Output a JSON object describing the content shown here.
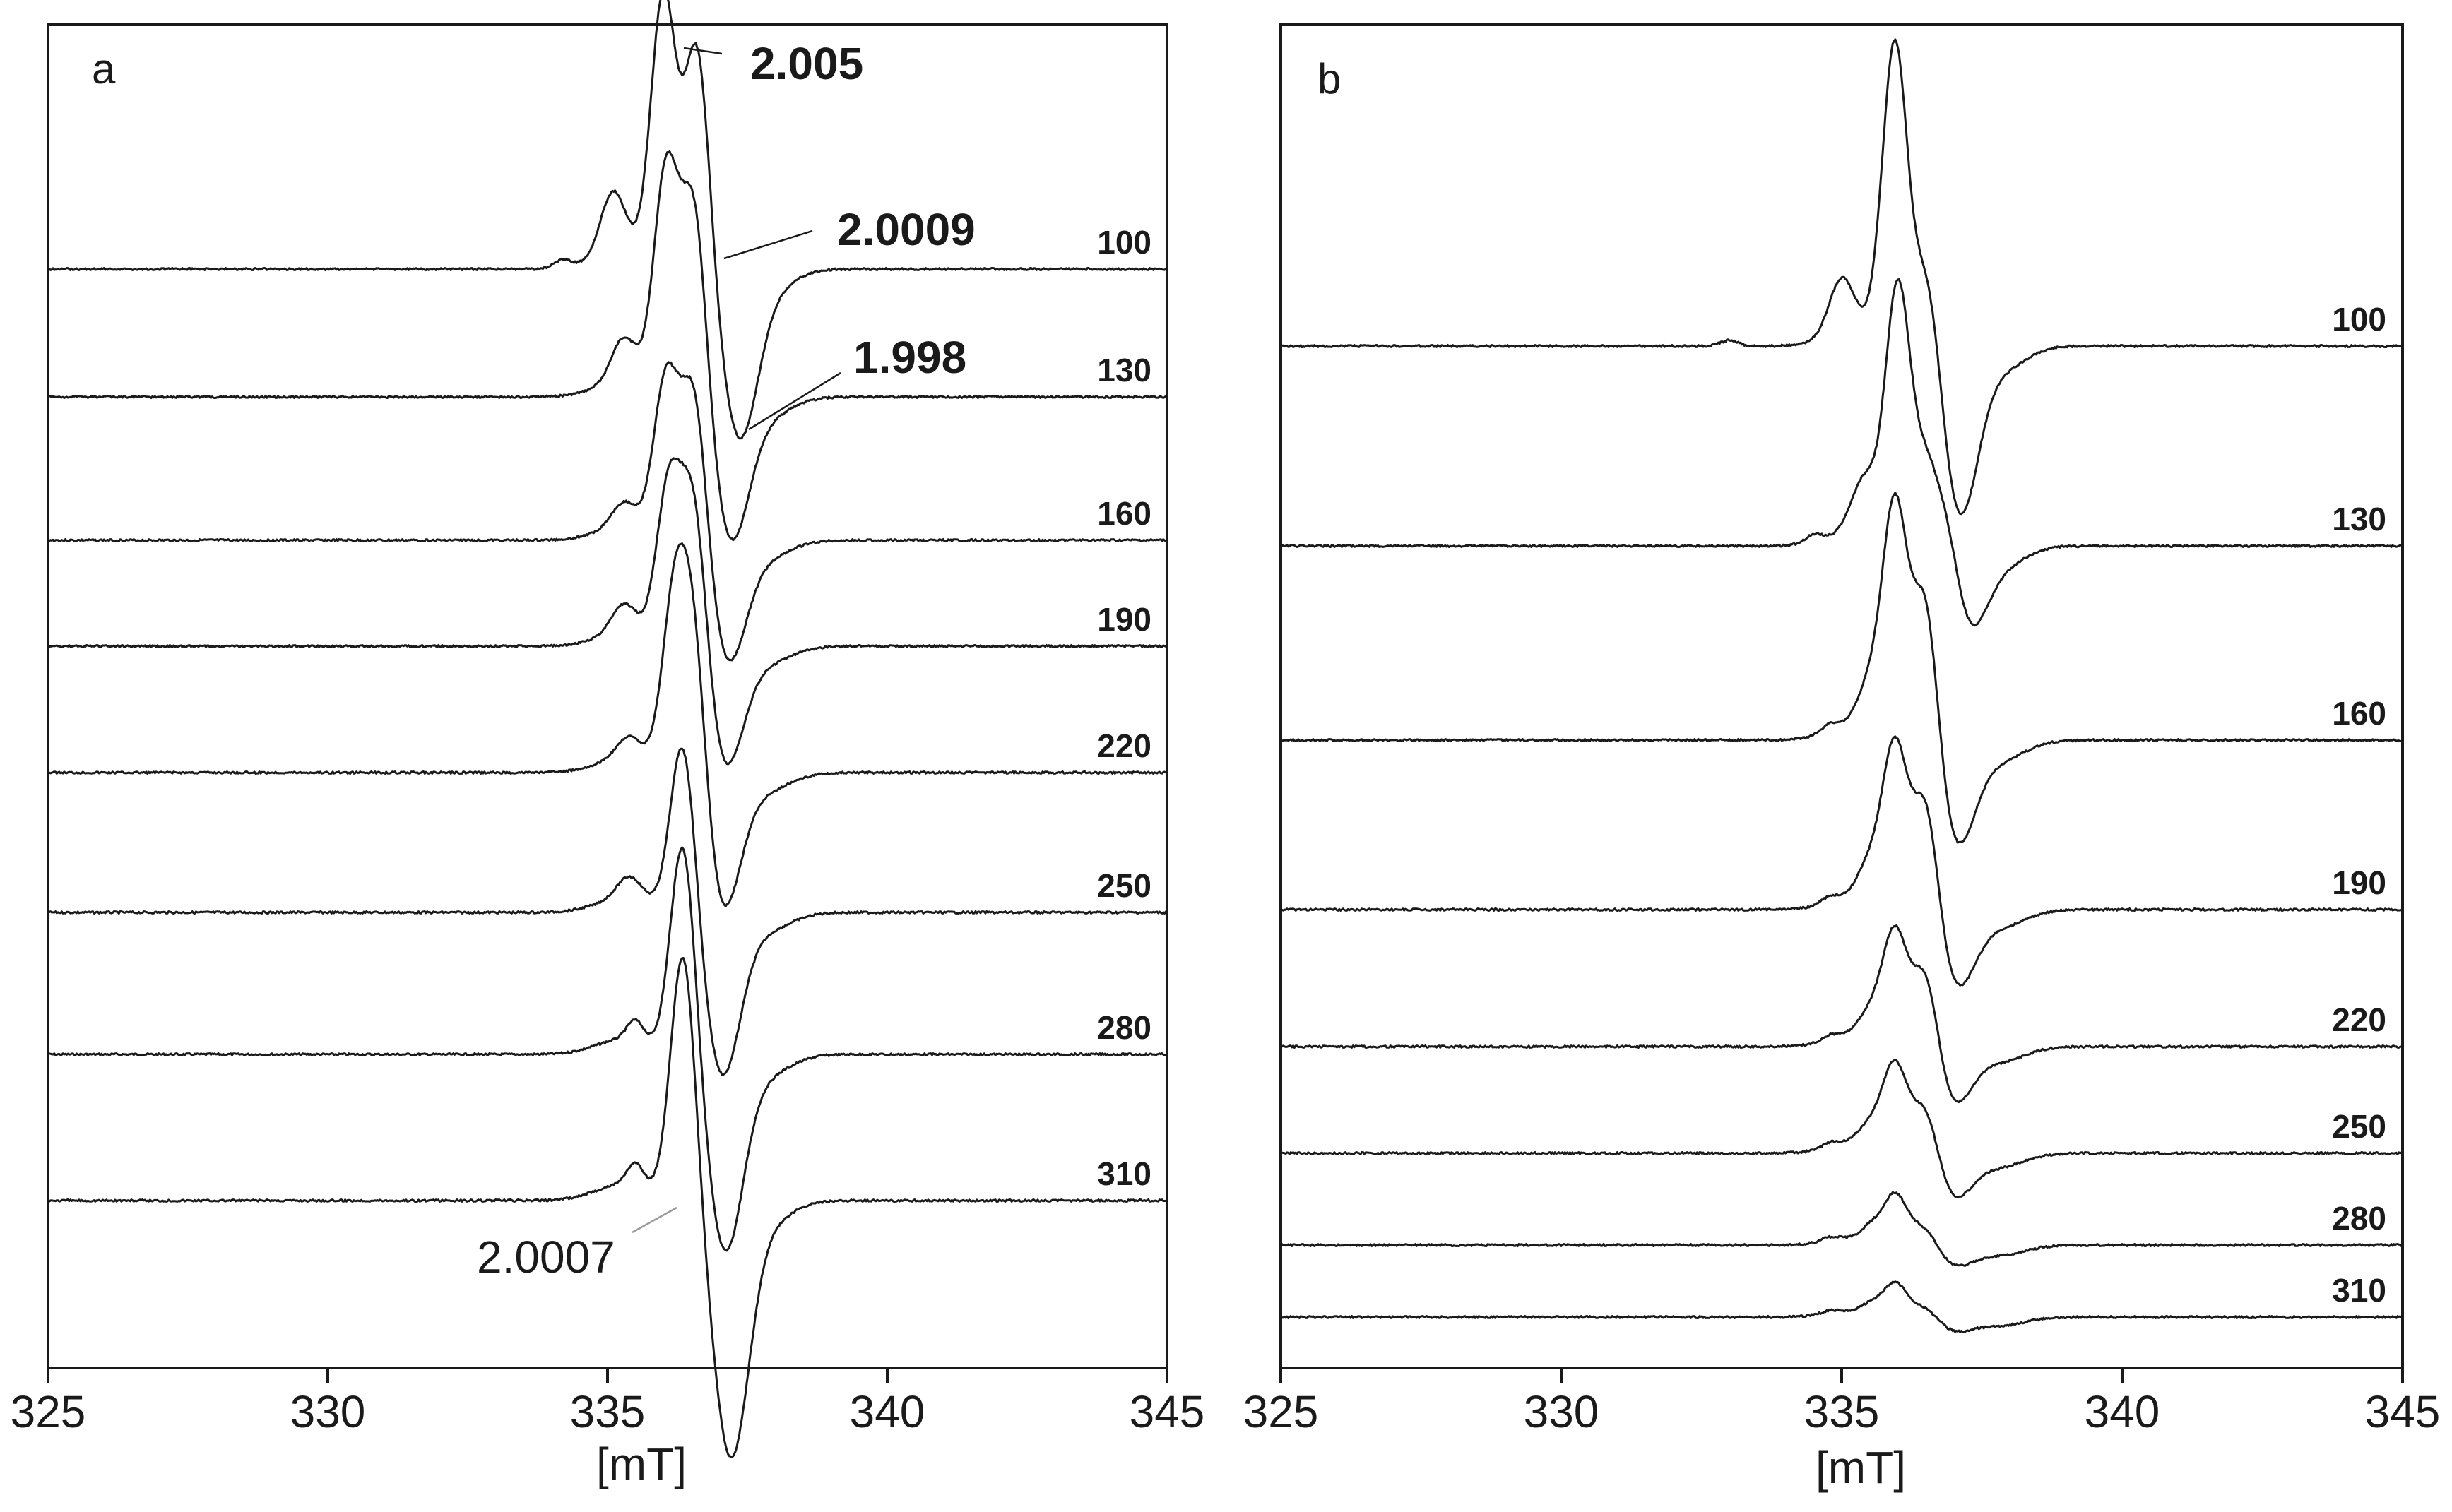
{
  "chart_data": [
    {
      "type": "line",
      "panel_label": "a",
      "xlabel": "[mT]",
      "ylabel": "",
      "xlim": [
        325,
        345
      ],
      "x_ticks": [
        325,
        330,
        335,
        340,
        345
      ],
      "x_tick_labels": [
        "325",
        "330",
        "335",
        "340",
        "345"
      ],
      "series": [
        {
          "name": "100",
          "peaks": [
            [
              334.2,
              0.03
            ],
            [
              335.1,
              0.22
            ],
            [
              336.0,
              0.95
            ],
            [
              336.6,
              0.8
            ],
            [
              337.35,
              -0.55
            ]
          ]
        },
        {
          "name": "130",
          "peaks": [
            [
              335.3,
              0.18
            ],
            [
              336.05,
              0.9
            ],
            [
              336.55,
              0.8
            ],
            [
              337.2,
              -0.55
            ]
          ]
        },
        {
          "name": "160",
          "peaks": [
            [
              335.3,
              0.12
            ],
            [
              336.05,
              0.75
            ],
            [
              336.55,
              0.75
            ],
            [
              337.15,
              -0.55
            ]
          ]
        },
        {
          "name": "190",
          "peaks": [
            [
              335.3,
              0.14
            ],
            [
              336.1,
              0.75
            ],
            [
              336.55,
              0.75
            ],
            [
              337.1,
              -0.55
            ]
          ]
        },
        {
          "name": "220",
          "peaks": [
            [
              335.4,
              0.1
            ],
            [
              336.2,
              0.75
            ],
            [
              336.55,
              0.7
            ],
            [
              337.05,
              -0.6
            ]
          ]
        },
        {
          "name": "250",
          "peaks": [
            [
              335.4,
              0.1
            ],
            [
              336.35,
              0.78
            ],
            [
              337.05,
              -0.7
            ]
          ]
        },
        {
          "name": "280",
          "peaks": [
            [
              335.5,
              0.08
            ],
            [
              336.35,
              0.85
            ],
            [
              337.1,
              -0.75
            ]
          ]
        },
        {
          "name": "310",
          "peaks": [
            [
              335.5,
              0.08
            ],
            [
              336.35,
              0.9
            ],
            [
              337.2,
              -0.9
            ]
          ]
        }
      ],
      "annotations": [
        {
          "text": "2.005",
          "x": 336.1
        },
        {
          "text": "2.0009",
          "x": 336.7
        },
        {
          "text": "1.998",
          "x": 337.2
        },
        {
          "text": "2.0007",
          "x": 336.2
        }
      ]
    },
    {
      "type": "line",
      "panel_label": "b",
      "xlabel": "[mT]",
      "ylabel": "",
      "xlim": [
        325,
        345
      ],
      "x_ticks": [
        325,
        330,
        335,
        340,
        345
      ],
      "x_tick_labels": [
        "325",
        "330",
        "335",
        "340",
        "345"
      ],
      "series": [
        {
          "name": "100",
          "peaks": [
            [
              333.0,
              0.02
            ],
            [
              335.0,
              0.18
            ],
            [
              335.95,
              1.0
            ],
            [
              336.55,
              0.3
            ],
            [
              337.1,
              -0.55
            ]
          ]
        },
        {
          "name": "130",
          "peaks": [
            [
              334.5,
              0.03
            ],
            [
              335.4,
              0.2
            ],
            [
              336.0,
              1.0
            ],
            [
              336.5,
              0.3
            ],
            [
              336.9,
              0.2
            ],
            [
              337.25,
              -0.3
            ]
          ]
        },
        {
          "name": "160",
          "peaks": [
            [
              334.8,
              0.03
            ],
            [
              335.5,
              0.15
            ],
            [
              335.95,
              0.9
            ],
            [
              336.5,
              0.6
            ],
            [
              337.05,
              -0.4
            ]
          ]
        },
        {
          "name": "190",
          "peaks": [
            [
              334.8,
              0.03
            ],
            [
              335.5,
              0.15
            ],
            [
              335.95,
              0.75
            ],
            [
              336.5,
              0.55
            ],
            [
              337.05,
              -0.35
            ]
          ]
        },
        {
          "name": "220",
          "peaks": [
            [
              334.8,
              0.03
            ],
            [
              335.5,
              0.12
            ],
            [
              335.95,
              0.6
            ],
            [
              336.5,
              0.45
            ],
            [
              337.0,
              -0.3
            ]
          ]
        },
        {
          "name": "250",
          "peaks": [
            [
              334.8,
              0.03
            ],
            [
              335.5,
              0.1
            ],
            [
              335.95,
              0.5
            ],
            [
              336.5,
              0.3
            ],
            [
              337.0,
              -0.25
            ]
          ]
        },
        {
          "name": "280",
          "peaks": [
            [
              334.8,
              0.03
            ],
            [
              335.5,
              0.08
            ],
            [
              335.95,
              0.38
            ],
            [
              336.5,
              0.15
            ],
            [
              337.0,
              -0.15
            ]
          ]
        },
        {
          "name": "310",
          "peaks": [
            [
              334.8,
              0.03
            ],
            [
              335.5,
              0.06
            ],
            [
              335.95,
              0.3
            ],
            [
              336.5,
              0.1
            ],
            [
              337.0,
              -0.12
            ]
          ]
        }
      ],
      "annotations": []
    }
  ]
}
